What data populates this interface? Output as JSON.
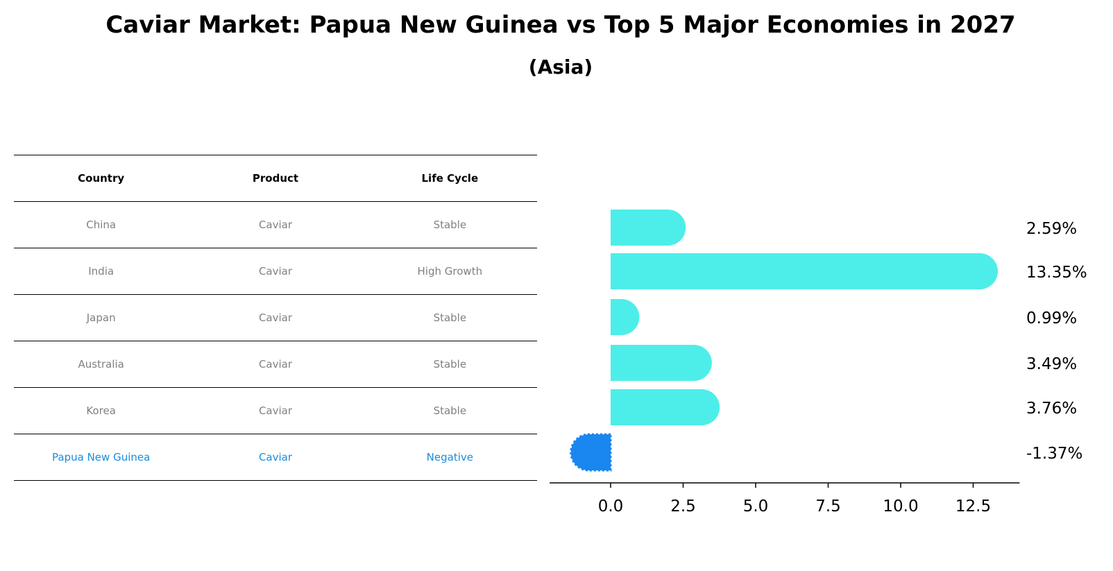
{
  "title": "Caviar Market: Papua New Guinea vs Top 5 Major Economies in 2027",
  "subtitle": "(Asia)",
  "table": {
    "headers": [
      "Country",
      "Product",
      "Life Cycle"
    ],
    "rows": [
      [
        "China",
        "Caviar",
        "Stable"
      ],
      [
        "India",
        "Caviar",
        "High Growth"
      ],
      [
        "Japan",
        "Caviar",
        "Stable"
      ],
      [
        "Australia",
        "Caviar",
        "Stable"
      ],
      [
        "Korea",
        "Caviar",
        "Stable"
      ],
      [
        "Papua New Guinea",
        "Caviar",
        "Negative"
      ]
    ],
    "highlight_row": 5
  },
  "colors": {
    "bar": "#4deee9",
    "highlight": "#1a86f0",
    "highlight_text": "#1a8cdc",
    "muted_text": "#808080"
  },
  "chart_data": {
    "type": "bar",
    "orientation": "horizontal",
    "categories": [
      "China",
      "India",
      "Japan",
      "Australia",
      "Korea",
      "Papua New Guinea"
    ],
    "values": [
      2.59,
      13.35,
      0.99,
      3.49,
      3.76,
      -1.37
    ],
    "value_labels": [
      "2.59%",
      "13.35%",
      "0.99%",
      "3.49%",
      "3.76%",
      "-1.37%"
    ],
    "xlim": [
      -2.1,
      14.1
    ],
    "xticks": [
      0.0,
      2.5,
      5.0,
      7.5,
      10.0,
      12.5
    ],
    "xtick_labels": [
      "0.0",
      "2.5",
      "5.0",
      "7.5",
      "10.0",
      "12.5"
    ],
    "title": "",
    "xlabel": "",
    "ylabel": ""
  }
}
